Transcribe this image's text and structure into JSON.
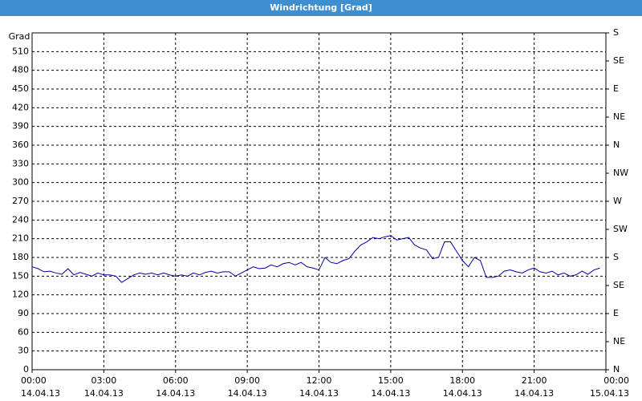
{
  "chart_data": {
    "type": "line",
    "title": "Windrichtung [Grad]",
    "ylabel": "Grad",
    "x": [
      0,
      0.25,
      0.5,
      0.75,
      1,
      1.25,
      1.5,
      1.75,
      2,
      2.25,
      2.5,
      2.75,
      3,
      3.25,
      3.5,
      3.75,
      4,
      4.25,
      4.5,
      4.75,
      5,
      5.25,
      5.5,
      5.75,
      6,
      6.25,
      6.5,
      6.75,
      7,
      7.25,
      7.5,
      7.75,
      8,
      8.25,
      8.5,
      8.75,
      9,
      9.25,
      9.5,
      9.75,
      10,
      10.25,
      10.5,
      10.75,
      11,
      11.25,
      11.5,
      11.75,
      12,
      12.25,
      12.5,
      12.75,
      13,
      13.25,
      13.5,
      13.75,
      14,
      14.25,
      14.5,
      14.75,
      15,
      15.25,
      15.5,
      15.75,
      16,
      16.25,
      16.5,
      16.75,
      17,
      17.25,
      17.5,
      17.75,
      18,
      18.25,
      18.5,
      18.75,
      19,
      19.25,
      19.5,
      19.75,
      20,
      20.25,
      20.5,
      20.75,
      21,
      21.25,
      21.5,
      21.75,
      22,
      22.25,
      22.5,
      22.75,
      23,
      23.25,
      23.5,
      23.75
    ],
    "series": [
      {
        "name": "Windrichtung",
        "color": "#0000a0",
        "values": [
          165,
          162,
          157,
          158,
          155,
          153,
          162,
          152,
          156,
          153,
          150,
          155,
          152,
          152,
          150,
          140,
          146,
          152,
          155,
          153,
          155,
          152,
          155,
          152,
          150,
          152,
          150,
          155,
          152,
          156,
          158,
          155,
          157,
          157,
          150,
          155,
          160,
          165,
          162,
          163,
          168,
          165,
          170,
          172,
          168,
          172,
          165,
          163,
          160,
          180,
          172,
          170,
          175,
          178,
          190,
          200,
          205,
          212,
          210,
          213,
          215,
          208,
          210,
          212,
          200,
          195,
          192,
          178,
          180,
          205,
          205,
          190,
          175,
          165,
          180,
          175,
          148,
          148,
          150,
          158,
          160,
          157,
          155,
          160,
          163,
          157,
          155,
          158,
          152,
          155,
          150,
          152,
          158,
          153,
          160,
          163
        ]
      }
    ],
    "xlim": [
      0,
      24
    ],
    "xticks": [
      {
        "value": 0,
        "label": "00:00"
      },
      {
        "value": 3,
        "label": "03:00"
      },
      {
        "value": 6,
        "label": "06:00"
      },
      {
        "value": 9,
        "label": "09:00"
      },
      {
        "value": 12,
        "label": "12:00"
      },
      {
        "value": 15,
        "label": "15:00"
      },
      {
        "value": 18,
        "label": "18:00"
      },
      {
        "value": 21,
        "label": "21:00"
      },
      {
        "value": 24,
        "label": "00:00"
      }
    ],
    "xtick_dates": [
      "14.04.13",
      "14.04.13",
      "14.04.13",
      "14.04.13",
      "14.04.13",
      "14.04.13",
      "14.04.13",
      "14.04.13",
      "15.04.13"
    ],
    "ylim": [
      0,
      540
    ],
    "yticks": [
      0,
      30,
      60,
      90,
      120,
      150,
      180,
      210,
      240,
      270,
      300,
      330,
      360,
      390,
      420,
      450,
      480,
      510
    ],
    "y2lim": [
      0,
      540
    ],
    "y2ticks": [
      {
        "value": 0,
        "label": "N"
      },
      {
        "value": 45,
        "label": "NE"
      },
      {
        "value": 90,
        "label": "E"
      },
      {
        "value": 135,
        "label": "SE"
      },
      {
        "value": 180,
        "label": "S"
      },
      {
        "value": 225,
        "label": "SW"
      },
      {
        "value": 270,
        "label": "W"
      },
      {
        "value": 315,
        "label": "NW"
      },
      {
        "value": 360,
        "label": "N"
      },
      {
        "value": 405,
        "label": "NE"
      },
      {
        "value": 450,
        "label": "E"
      },
      {
        "value": 495,
        "label": "SE"
      },
      {
        "value": 540,
        "label": "S"
      }
    ],
    "grid": true
  }
}
